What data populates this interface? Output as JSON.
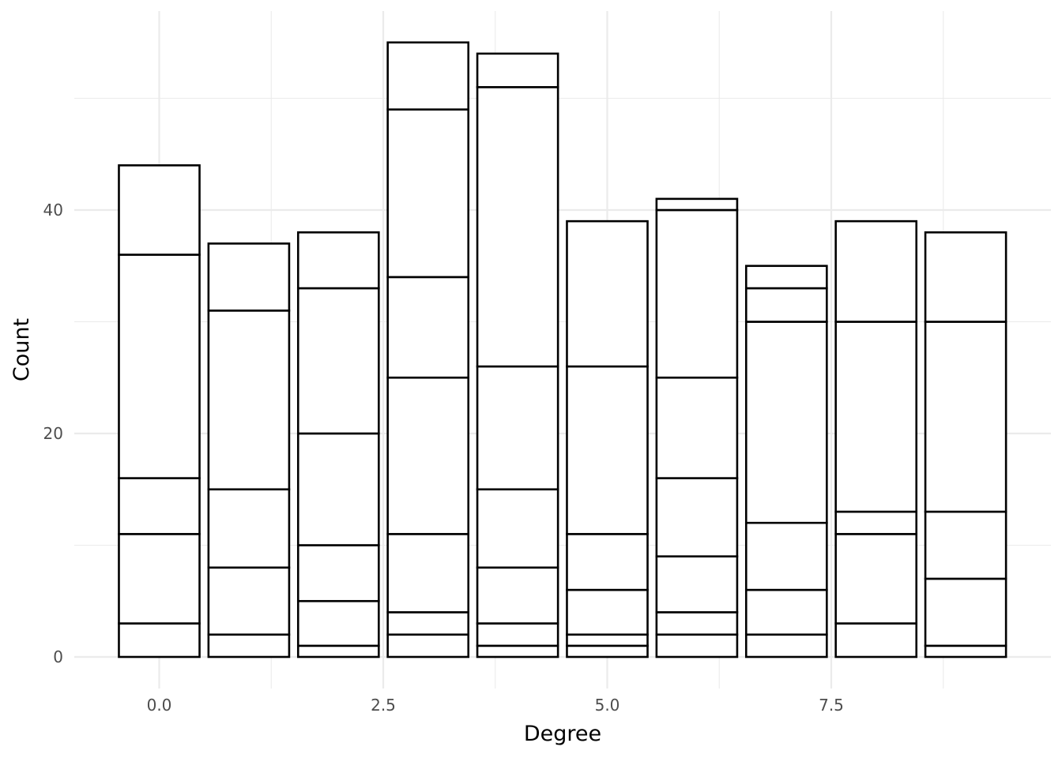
{
  "chart_data": {
    "type": "bar",
    "stacked": true,
    "title": "",
    "xlabel": "Degree",
    "ylabel": "Count",
    "x_ticks": [
      "0.0",
      "2.5",
      "5.0",
      "7.5"
    ],
    "y_ticks": [
      "0",
      "20",
      "40"
    ],
    "xlim": [
      -0.8,
      9.5
    ],
    "ylim": [
      -2,
      57
    ],
    "grid": true,
    "legend": "none",
    "categories": [
      0,
      1,
      2,
      3,
      4,
      5,
      6,
      7,
      8,
      9
    ],
    "stacks": [
      [
        0,
        3,
        11,
        16,
        36,
        44
      ],
      [
        0,
        2,
        8,
        15,
        31,
        37
      ],
      [
        0,
        1,
        5,
        10,
        20,
        33,
        38
      ],
      [
        0,
        2,
        4,
        11,
        25,
        34,
        49,
        55
      ],
      [
        0,
        1,
        3,
        8,
        15,
        26,
        51,
        54
      ],
      [
        0,
        1,
        2,
        6,
        11,
        26,
        39
      ],
      [
        0,
        2,
        4,
        9,
        16,
        25,
        40,
        41
      ],
      [
        0,
        2,
        6,
        12,
        30,
        33,
        35
      ],
      [
        0,
        3,
        11,
        13,
        30,
        39
      ],
      [
        0,
        1,
        7,
        13,
        30,
        38
      ]
    ],
    "values": [
      44,
      37,
      38,
      55,
      54,
      39,
      41,
      35,
      39,
      38
    ],
    "colors": {
      "fill": "#ffffff",
      "outline": "#000000",
      "grid": "#ebebeb"
    }
  }
}
